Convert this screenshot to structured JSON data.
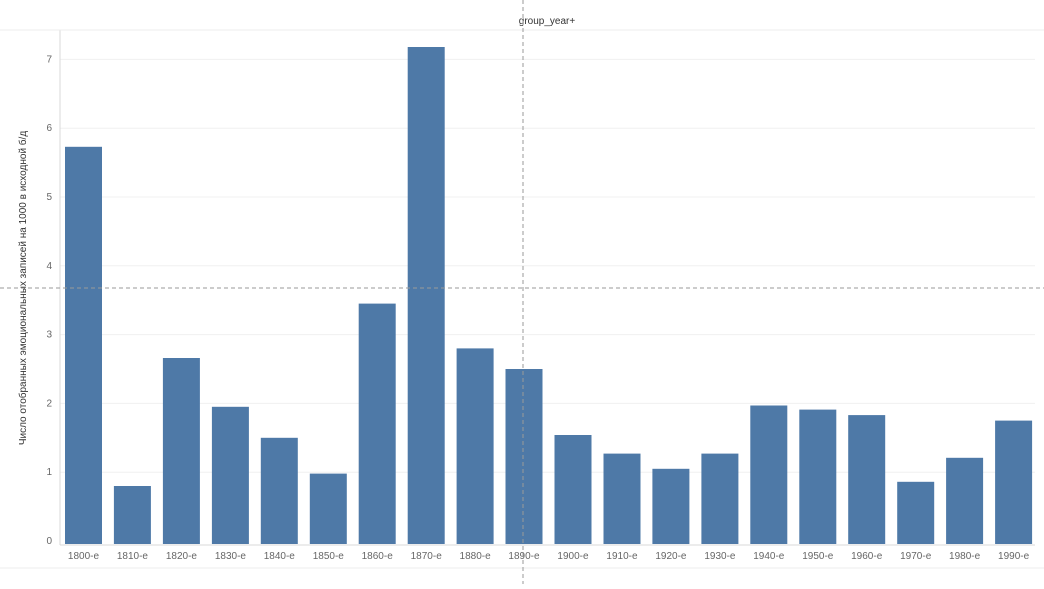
{
  "chart_data": {
    "type": "bar",
    "title": "group_year+",
    "ylabel": "Число отобранных эмоциональных записей на 1000 в исходной б/д",
    "xlabel": "",
    "categories": [
      "1800-е",
      "1810-е",
      "1820-е",
      "1830-е",
      "1840-е",
      "1850-е",
      "1860-е",
      "1870-е",
      "1880-е",
      "1890-е",
      "1900-е",
      "1910-е",
      "1920-е",
      "1930-е",
      "1940-е",
      "1950-е",
      "1960-е",
      "1970-е",
      "1980-е",
      "1990-е"
    ],
    "values": [
      5.73,
      0.8,
      2.66,
      1.95,
      1.5,
      0.98,
      3.45,
      7.18,
      2.8,
      2.5,
      1.54,
      1.27,
      1.05,
      1.27,
      1.97,
      1.91,
      1.83,
      0.86,
      1.21,
      1.75
    ],
    "ylim": [
      0,
      7.5
    ],
    "yticks": [
      "0",
      "1",
      "2",
      "3",
      "4",
      "5",
      "6",
      "7"
    ],
    "grid": true,
    "colors": {
      "bar": "#4e79a7"
    }
  }
}
